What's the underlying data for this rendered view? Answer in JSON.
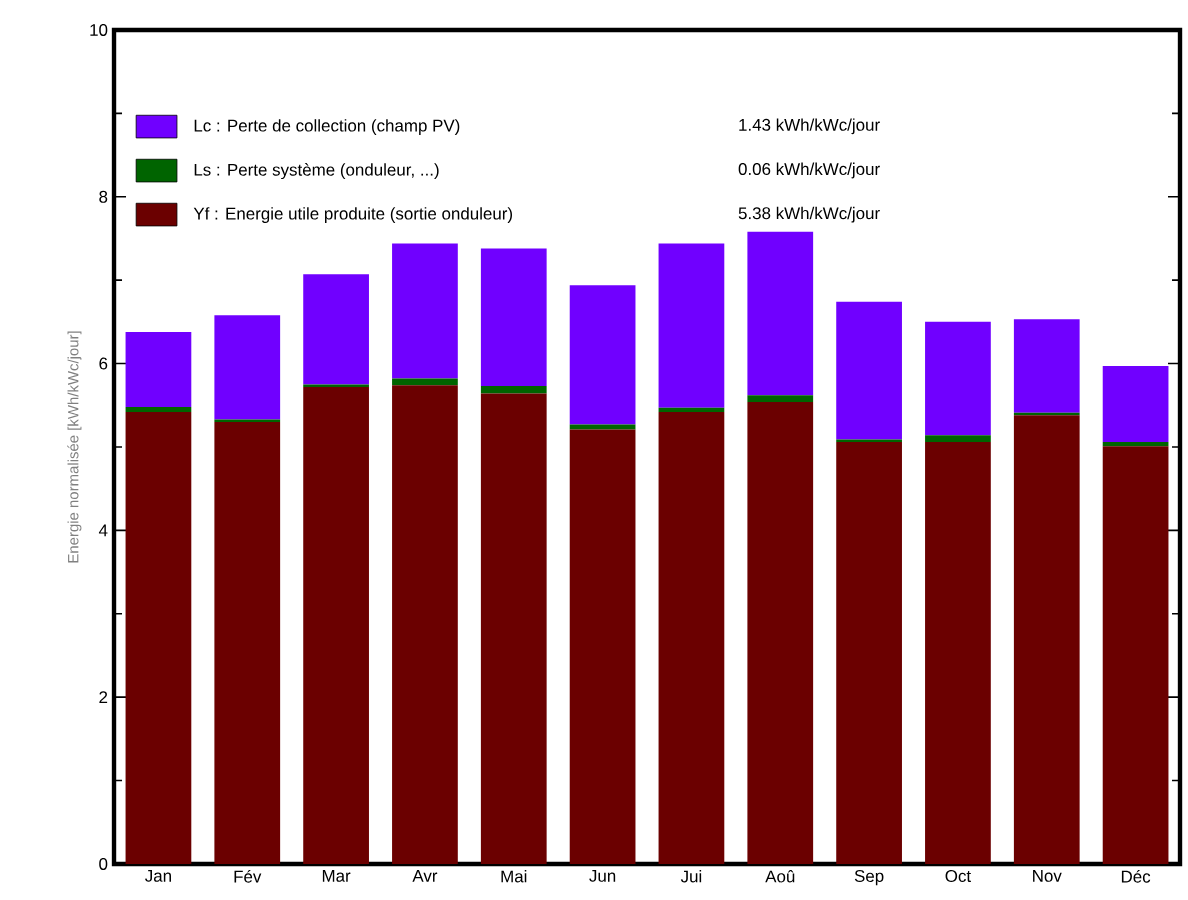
{
  "chart_data": {
    "type": "bar",
    "stacked": true,
    "ylabel": "Energie normalisée  [kWh/kWc/jour]",
    "categories": [
      "Jan",
      "Fév",
      "Mar",
      "Avr",
      "Mai",
      "Jun",
      "Jui",
      "Aoû",
      "Sep",
      "Oct",
      "Nov",
      "Déc"
    ],
    "series": [
      {
        "name": "Yf : Energie utile produite  (sortie onduleur)",
        "color": "#6b0000",
        "values": [
          5.42,
          5.3,
          5.72,
          5.74,
          5.64,
          5.21,
          5.42,
          5.54,
          5.06,
          5.06,
          5.38,
          5.01
        ]
      },
      {
        "name": "Ls : Perte système  (onduleur, ...)",
        "color": "#006400",
        "values": [
          0.06,
          0.03,
          0.03,
          0.08,
          0.09,
          0.06,
          0.05,
          0.08,
          0.03,
          0.08,
          0.03,
          0.05
        ]
      },
      {
        "name": "Lc : Perte de collection (champ PV)",
        "color": "#7000ff",
        "values": [
          0.9,
          1.25,
          1.32,
          1.62,
          1.65,
          1.67,
          1.97,
          1.96,
          1.65,
          1.36,
          1.12,
          0.91
        ]
      }
    ],
    "annotations": [
      "5.38 kWh/kWc/jour",
      "0.06 kWh/kWc/jour",
      "1.43 kWh/kWc/jour"
    ],
    "ylim": [
      0,
      10
    ],
    "yticks": [
      0,
      2,
      4,
      6,
      8,
      10
    ],
    "legend": "top left"
  }
}
